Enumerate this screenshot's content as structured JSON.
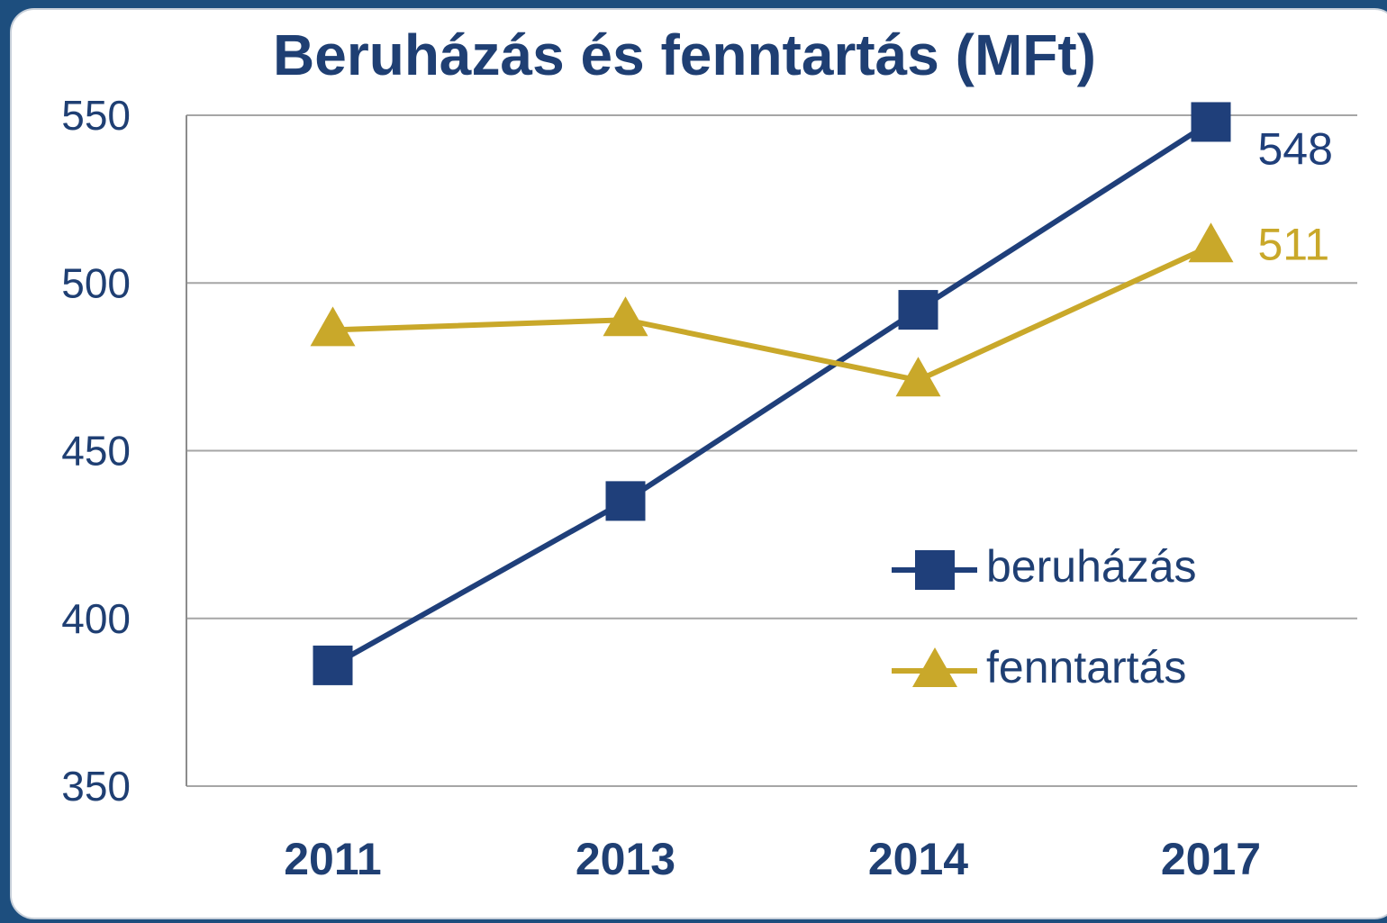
{
  "chart_data": {
    "type": "line",
    "title": "Beruházás és fenntartás (MFt)",
    "categories": [
      "2011",
      "2013",
      "2014",
      "2017"
    ],
    "series": [
      {
        "name": "beruházás",
        "color": "#1f3f7a",
        "marker": "square",
        "values": [
          386,
          435,
          492,
          548
        ]
      },
      {
        "name": "fenntartás",
        "color": "#c9a82a",
        "marker": "triangle",
        "values": [
          486,
          489,
          471,
          511
        ]
      }
    ],
    "ylim": [
      350,
      550
    ],
    "yticks": [
      350,
      400,
      450,
      500,
      550
    ],
    "grid": true,
    "legend": "right"
  }
}
